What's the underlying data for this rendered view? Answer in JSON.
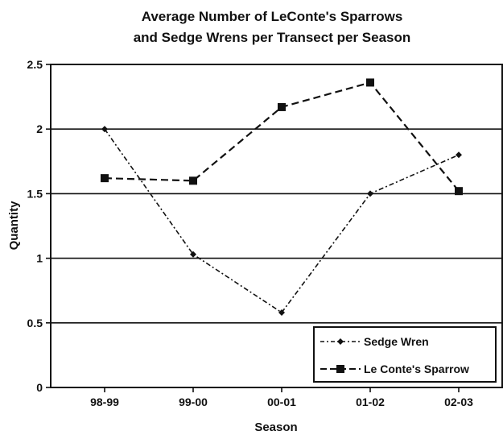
{
  "chart_data": {
    "type": "line",
    "title": "Average Number of LeConte's Sparrows and Sedge Wrens per Transect per Season",
    "title_lines": [
      "Average Number of LeConte's Sparrows",
      "and Sedge Wrens per Transect per Season"
    ],
    "xlabel": "Season",
    "ylabel": "Quantity",
    "categories": [
      "98-99",
      "99-00",
      "00-01",
      "01-02",
      "02-03"
    ],
    "ylim": [
      0,
      2.5
    ],
    "yticks": [
      0,
      0.5,
      1,
      1.5,
      2,
      2.5
    ],
    "ytick_labels": [
      "0",
      "0.5",
      "1",
      "1.5",
      "2",
      "2.5"
    ],
    "grid": true,
    "legend_position": "bottom-right",
    "series": [
      {
        "name": "Sedge Wren",
        "values": [
          2.0,
          1.03,
          0.58,
          1.5,
          1.8
        ],
        "marker": "diamond",
        "line_style": "dash-dot",
        "color": "#111111"
      },
      {
        "name": "Le Conte's Sparrow",
        "values": [
          1.62,
          1.6,
          2.17,
          2.36,
          1.52
        ],
        "marker": "square",
        "line_style": "dashed",
        "color": "#111111"
      }
    ]
  }
}
